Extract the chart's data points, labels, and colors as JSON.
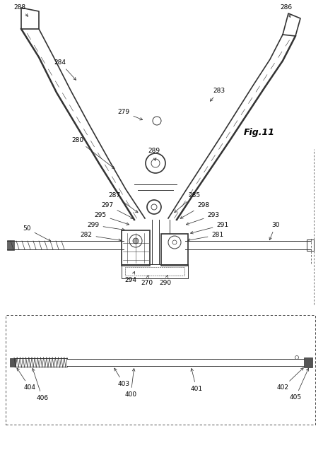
{
  "bg_color": "#ffffff",
  "lc": "#333333",
  "fig_width": 4.57,
  "fig_height": 6.61,
  "dpi": 100,
  "fig11_text": "Fig.11"
}
